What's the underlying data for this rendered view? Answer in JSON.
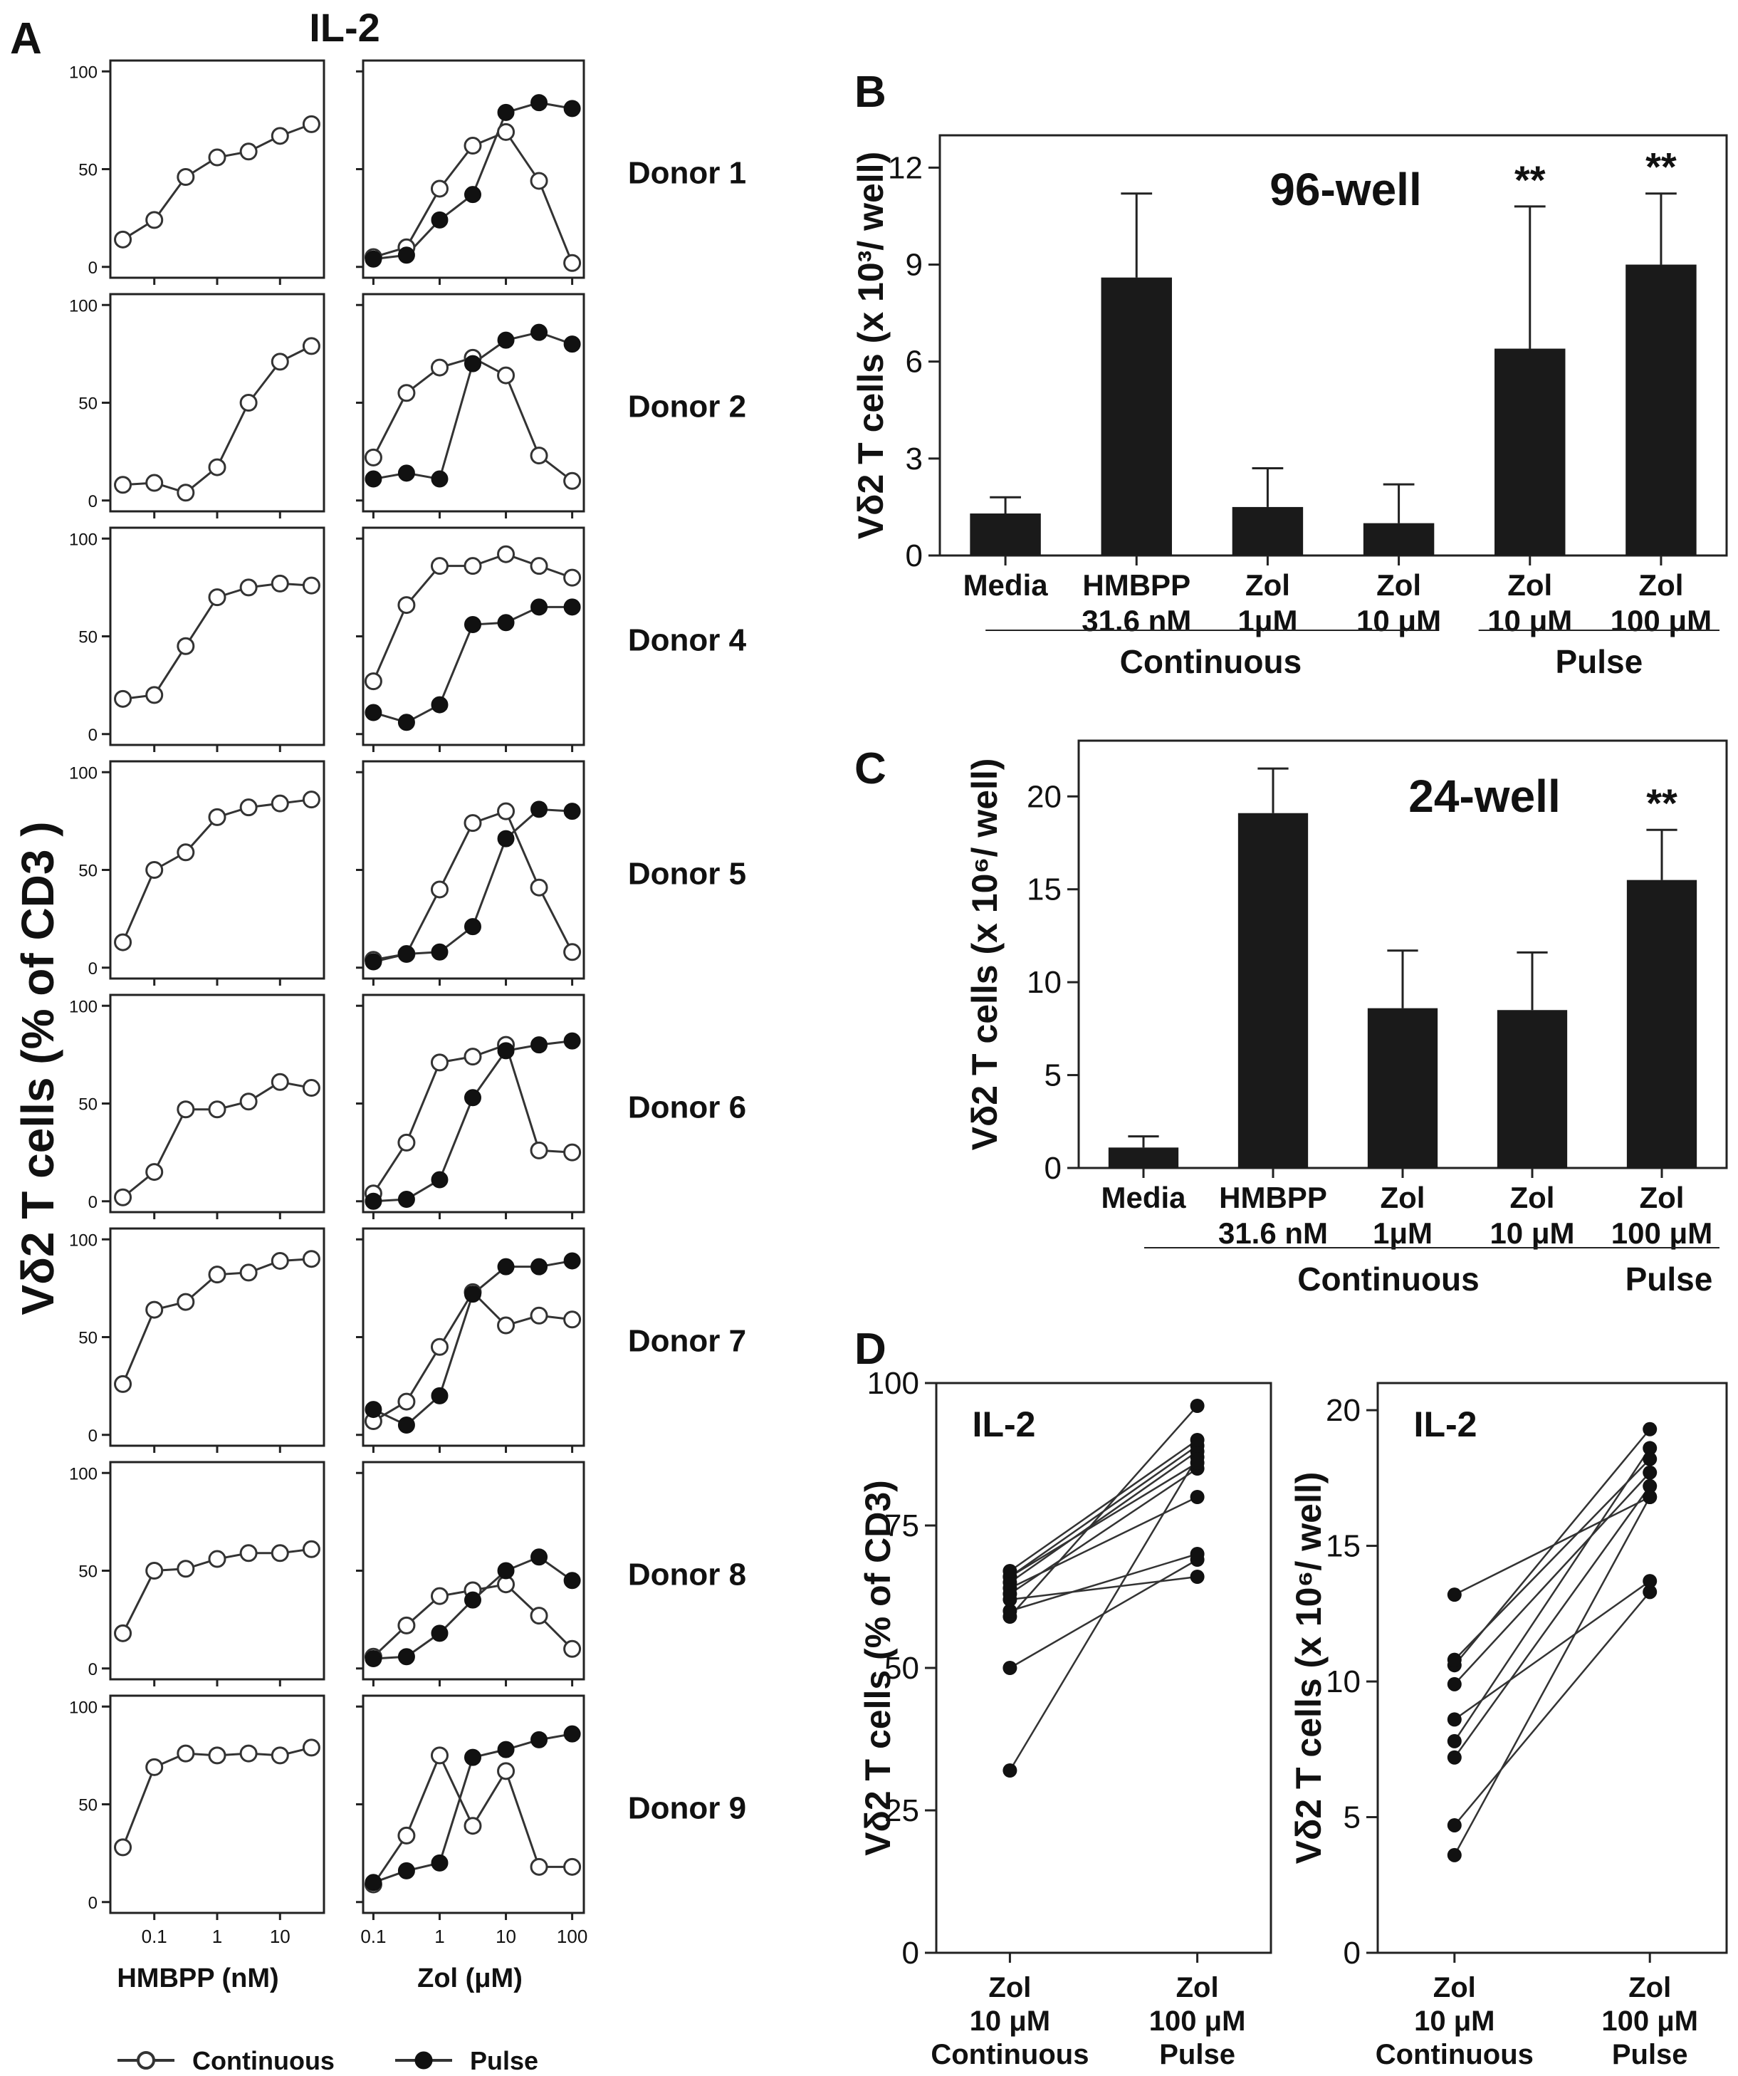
{
  "panel_letters": {
    "a": "A",
    "b": "B",
    "c": "C",
    "d": "D"
  },
  "colors": {
    "axis": "#222222",
    "bar": "#1a1a1a",
    "continuous_marker": "#ffffff",
    "pulse_marker": "#111111",
    "line": "#333333"
  },
  "panel_a": {
    "title": "IL-2",
    "ylabel": "Vδ2 T cells (% of CD3 )",
    "left_xlabel": "HMBPP (nM)",
    "right_xlabel": "Zol (μM)",
    "legend": {
      "continuous": "Continuous",
      "pulse": "Pulse"
    },
    "y_ticks": [
      "0",
      "50",
      "100"
    ],
    "left_x_ticks": [
      "0.1",
      "1",
      "10"
    ],
    "right_x_ticks": [
      "0.1",
      "1",
      "10",
      "100"
    ]
  },
  "panel_b": {
    "title": "96-well",
    "ylabel": "Vδ2 T cells (x 10³/ well)",
    "y_ticks": [
      "0",
      "3",
      "6",
      "9",
      "12"
    ],
    "categories": [
      [
        "Media"
      ],
      [
        "HMBPP",
        "31.6 nM"
      ],
      [
        "Zol",
        "1μM"
      ],
      [
        "Zol",
        "10 μM"
      ],
      [
        "Zol",
        "10 μM"
      ],
      [
        "Zol",
        "100 μM"
      ]
    ],
    "group_continuous": "Continuous",
    "group_pulse": "Pulse",
    "significance": "**"
  },
  "panel_c": {
    "title": "24-well",
    "ylabel": "Vδ2 T cells (x 10⁶/ well)",
    "y_ticks": [
      "0",
      "5",
      "10",
      "15",
      "20"
    ],
    "categories": [
      [
        "Media"
      ],
      [
        "HMBPP",
        "31.6 nM"
      ],
      [
        "Zol",
        "1μM"
      ],
      [
        "Zol",
        "10 μM"
      ],
      [
        "Zol",
        "100 μM"
      ]
    ],
    "group_continuous": "Continuous",
    "group_pulse": "Pulse",
    "significance": "**"
  },
  "panel_d": {
    "left_title": "IL-2",
    "right_title": "IL-2",
    "left_ylabel": "Vδ2 T cells (% of CD3)",
    "right_ylabel": "Vδ2 T cells (x 10⁶/ well)",
    "left_y_ticks": [
      "0",
      "25",
      "50",
      "75",
      "100"
    ],
    "right_y_ticks": [
      "0",
      "5",
      "10",
      "15",
      "20"
    ],
    "x_labels": [
      [
        "Zol",
        "10 μM",
        "Continuous"
      ],
      [
        "Zol",
        "100 μM",
        "Pulse"
      ]
    ]
  },
  "chart_data": [
    {
      "type": "line",
      "panel": "A-left",
      "xscale": "log",
      "xlabel": "HMBPP (nM)",
      "ylabel": "Vδ2 T cells (% of CD3 )",
      "ylim": [
        0,
        100
      ],
      "x": [
        0.0316,
        0.1,
        0.316,
        1,
        3.16,
        10,
        31.6
      ],
      "series": [
        {
          "name": "Donor 1",
          "values": [
            14,
            24,
            46,
            56,
            59,
            67,
            73
          ]
        },
        {
          "name": "Donor 2",
          "values": [
            8,
            9,
            4,
            17,
            50,
            71,
            79
          ]
        },
        {
          "name": "Donor 4",
          "values": [
            18,
            20,
            45,
            70,
            75,
            77,
            76
          ]
        },
        {
          "name": "Donor 5",
          "values": [
            13,
            50,
            59,
            77,
            82,
            84,
            86
          ]
        },
        {
          "name": "Donor 6",
          "values": [
            2,
            15,
            47,
            47,
            51,
            61,
            58
          ]
        },
        {
          "name": "Donor 7",
          "values": [
            26,
            64,
            68,
            82,
            83,
            89,
            90
          ]
        },
        {
          "name": "Donor 8",
          "values": [
            18,
            50,
            51,
            56,
            59,
            59,
            61
          ]
        },
        {
          "name": "Donor 9",
          "values": [
            28,
            69,
            76,
            75,
            76,
            75,
            79
          ]
        }
      ]
    },
    {
      "type": "line",
      "panel": "A-right",
      "xscale": "log",
      "xlabel": "Zol (μM)",
      "ylim": [
        0,
        100
      ],
      "x": [
        0.1,
        0.316,
        1,
        3.16,
        10,
        31.6,
        100
      ],
      "series": [
        {
          "name": "Donor 1",
          "continuous": [
            5,
            10,
            40,
            62,
            69,
            44,
            2
          ],
          "pulse": [
            4,
            6,
            24,
            37,
            79,
            84,
            81
          ]
        },
        {
          "name": "Donor 2",
          "continuous": [
            22,
            55,
            68,
            73,
            64,
            23,
            10
          ],
          "pulse": [
            11,
            14,
            11,
            70,
            82,
            86,
            80
          ]
        },
        {
          "name": "Donor 4",
          "continuous": [
            27,
            66,
            86,
            86,
            92,
            86,
            80
          ],
          "pulse": [
            11,
            6,
            15,
            56,
            57,
            65,
            65
          ]
        },
        {
          "name": "Donor 5",
          "continuous": [
            4,
            7,
            40,
            74,
            80,
            41,
            8
          ],
          "pulse": [
            3,
            7,
            8,
            21,
            66,
            81,
            80
          ]
        },
        {
          "name": "Donor 6",
          "continuous": [
            4,
            30,
            71,
            74,
            80,
            26,
            25
          ],
          "pulse": [
            0,
            1,
            11,
            53,
            77,
            80,
            82
          ]
        },
        {
          "name": "Donor 7",
          "continuous": [
            7,
            17,
            45,
            73,
            56,
            61,
            59
          ],
          "pulse": [
            13,
            5,
            20,
            72,
            86,
            86,
            89
          ]
        },
        {
          "name": "Donor 8",
          "continuous": [
            6,
            22,
            37,
            40,
            43,
            27,
            10
          ],
          "pulse": [
            5,
            6,
            18,
            35,
            50,
            57,
            45
          ]
        },
        {
          "name": "Donor 9",
          "continuous": [
            9,
            34,
            75,
            39,
            67,
            18,
            18
          ],
          "pulse": [
            10,
            16,
            20,
            74,
            78,
            83,
            86
          ]
        }
      ]
    },
    {
      "type": "bar",
      "panel": "B",
      "title": "96-well",
      "ylabel": "Vδ2 T cells (x 10³/ well)",
      "ylim": [
        0,
        13
      ],
      "categories": [
        "Media",
        "HMBPP 31.6 nM",
        "Zol 1μM",
        "Zol 10 μM",
        "Zol 10 μM",
        "Zol 100 μM"
      ],
      "values": [
        1.3,
        8.6,
        1.5,
        1.0,
        6.4,
        9.0
      ],
      "errors": [
        0.5,
        2.6,
        1.2,
        1.2,
        4.4,
        2.2
      ],
      "significant": [
        false,
        false,
        false,
        false,
        true,
        true
      ]
    },
    {
      "type": "bar",
      "panel": "C",
      "title": "24-well",
      "ylabel": "Vδ2 T cells (x 10⁶/ well)",
      "ylim": [
        0,
        23
      ],
      "categories": [
        "Media",
        "HMBPP 31.6 nM",
        "Zol 1μM",
        "Zol 10 μM",
        "Zol 100 μM"
      ],
      "values": [
        1.1,
        19.1,
        8.6,
        8.5,
        15.5
      ],
      "errors": [
        0.6,
        2.4,
        3.1,
        3.1,
        2.7
      ],
      "significant": [
        false,
        false,
        false,
        false,
        true
      ]
    },
    {
      "type": "scatter",
      "panel": "D-left",
      "title": "IL-2",
      "ylabel": "Vδ2 T cells (% of CD3)",
      "ylim": [
        0,
        100
      ],
      "categories": [
        "Zol 10 μM Continuous",
        "Zol 100 μM Pulse"
      ],
      "pairs": [
        [
          32,
          87
        ],
        [
          50,
          69
        ],
        [
          59,
          96
        ],
        [
          60,
          70
        ],
        [
          62,
          66
        ],
        [
          63,
          85
        ],
        [
          64,
          80
        ],
        [
          65,
          88
        ],
        [
          66,
          86
        ],
        [
          66,
          89
        ],
        [
          67,
          90
        ]
      ]
    },
    {
      "type": "scatter",
      "panel": "D-right",
      "title": "IL-2",
      "ylabel": "Vδ2 T cells (x 10⁶/ well)",
      "ylim": [
        0,
        21
      ],
      "categories": [
        "Zol 10 μM Continuous",
        "Zol 100 μM Pulse"
      ],
      "pairs": [
        [
          3.6,
          16.8
        ],
        [
          4.7,
          13.3
        ],
        [
          7.2,
          17.2
        ],
        [
          7.8,
          18.6
        ],
        [
          8.6,
          13.7
        ],
        [
          9.9,
          17.7
        ],
        [
          10.6,
          19.3
        ],
        [
          10.8,
          18.2
        ],
        [
          13.2,
          16.8
        ]
      ]
    }
  ]
}
